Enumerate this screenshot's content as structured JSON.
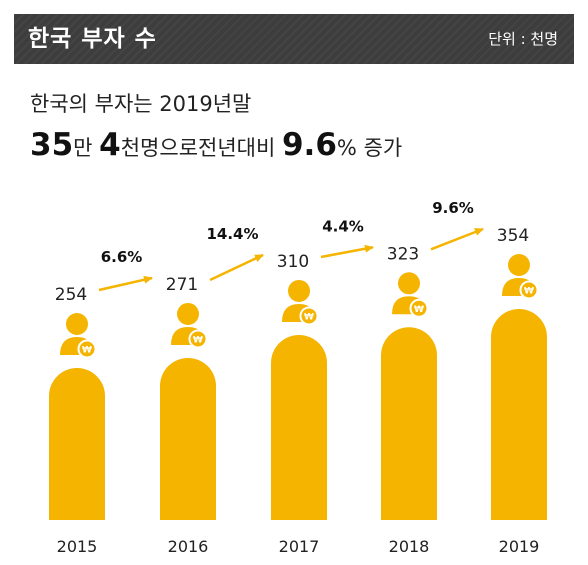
{
  "header": {
    "title": "한국 부자 수",
    "unit": "단위 : 천명"
  },
  "headline": {
    "line1": "한국의 부자는 2019년말",
    "num_a": "35",
    "unit_a": "만",
    "num_b": "4",
    "text_b": "천명으로전년대비",
    "num_c": "9.6",
    "pct_sign": "%",
    "text_c": "증가"
  },
  "colors": {
    "accent": "#f5b400",
    "header_bg": "#3d3d3d",
    "won_badge": "#f5b400"
  },
  "icons": [
    "person-icon",
    "won-coin-icon",
    "arrow-icon"
  ],
  "chart_data": {
    "type": "bar",
    "title": "한국 부자 수",
    "unit": "천명",
    "categories": [
      "2015",
      "2016",
      "2017",
      "2018",
      "2019"
    ],
    "values": [
      254,
      271,
      310,
      323,
      354
    ],
    "value_labels": [
      "254",
      "271",
      "310",
      "323",
      "354"
    ],
    "growth_labels": [
      "6.6%",
      "14.4%",
      "4.4%",
      "9.6%"
    ],
    "coin_symbol": "₩",
    "grid": false,
    "legend": "none"
  }
}
